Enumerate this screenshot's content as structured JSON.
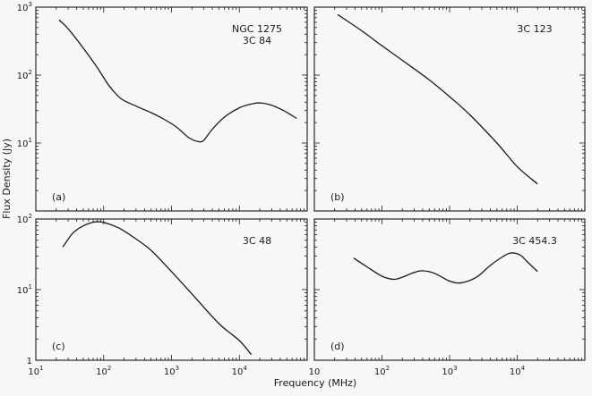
{
  "figure": {
    "ylabel": "Flux Density (Jy)",
    "xlabel": "Frequency (MHz)",
    "ink_color": "#1a1a1a",
    "background": "#f7f7f5"
  },
  "chart_data": [
    {
      "type": "line",
      "panel_label": "(a)",
      "source_label": [
        "NGC 1275",
        "3C 84"
      ],
      "x_scale": "log",
      "y_scale": "log",
      "xlim": [
        10,
        100000
      ],
      "ylim": [
        1,
        1000
      ],
      "x_ticks": [],
      "y_ticks": [
        1000,
        100,
        10
      ],
      "y_tick_labels": [
        "10^3",
        "10^2",
        "10^1"
      ],
      "x": [
        22,
        30,
        50,
        80,
        120,
        180,
        300,
        500,
        800,
        1200,
        1800,
        2500,
        3000,
        4000,
        6000,
        10000,
        15000,
        20000,
        30000,
        45000,
        70000
      ],
      "y": [
        650,
        480,
        250,
        130,
        70,
        45,
        35,
        28,
        22,
        17,
        12,
        10.5,
        11,
        16,
        24,
        33,
        37.5,
        39,
        36,
        30,
        23
      ]
    },
    {
      "type": "line",
      "panel_label": "(b)",
      "source_label": [
        "3C 123"
      ],
      "x_scale": "log",
      "y_scale": "log",
      "xlim": [
        10,
        100000
      ],
      "ylim": [
        1,
        1000
      ],
      "x_ticks": [],
      "y_ticks": [],
      "x": [
        22,
        50,
        100,
        200,
        500,
        1000,
        2000,
        5000,
        10000,
        20000
      ],
      "y": [
        780,
        450,
        270,
        165,
        85,
        48,
        26,
        10,
        4.5,
        2.5
      ]
    },
    {
      "type": "line",
      "panel_label": "(c)",
      "source_label": [
        "3C 48"
      ],
      "x_scale": "log",
      "y_scale": "log",
      "xlim": [
        10,
        100000
      ],
      "ylim": [
        1,
        100
      ],
      "x_ticks": [
        10,
        100,
        1000,
        10000
      ],
      "x_tick_labels": [
        "10^1",
        "10^2",
        "10^3",
        "10^4"
      ],
      "y_ticks": [
        100,
        10,
        1
      ],
      "y_tick_labels": [
        "10^2",
        "10^1",
        "1"
      ],
      "x": [
        25,
        35,
        50,
        70,
        90,
        120,
        180,
        300,
        500,
        1000,
        2000,
        5000,
        10000,
        15000
      ],
      "y": [
        40,
        63,
        80,
        90,
        91,
        85,
        72,
        52,
        36,
        18,
        8.7,
        3.3,
        1.9,
        1.2
      ]
    },
    {
      "type": "line",
      "panel_label": "(d)",
      "source_label": [
        "3C 454.3"
      ],
      "x_scale": "log",
      "y_scale": "log",
      "xlim": [
        10,
        100000
      ],
      "ylim": [
        1,
        100
      ],
      "x_ticks": [
        10,
        100,
        1000,
        10000
      ],
      "x_tick_labels": [
        "10",
        "10^2",
        "10^3",
        "10^4"
      ],
      "y_ticks": [],
      "x": [
        38,
        60,
        100,
        150,
        200,
        300,
        400,
        600,
        1000,
        1500,
        2500,
        4000,
        6000,
        8000,
        11000,
        14000,
        20000
      ],
      "y": [
        28,
        21,
        15.5,
        14,
        15,
        17.5,
        18.5,
        17,
        13.2,
        12.5,
        15,
        22,
        29,
        33,
        31,
        25,
        18
      ]
    }
  ]
}
